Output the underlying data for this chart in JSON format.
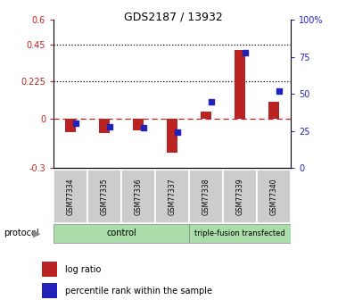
{
  "title": "GDS2187 / 13932",
  "samples": [
    "GSM77334",
    "GSM77335",
    "GSM77336",
    "GSM77337",
    "GSM77338",
    "GSM77339",
    "GSM77340"
  ],
  "log_ratio": [
    -0.08,
    -0.09,
    -0.07,
    -0.21,
    0.04,
    0.42,
    0.1
  ],
  "percentile_rank": [
    30,
    28,
    27,
    24,
    45,
    78,
    52
  ],
  "control_count": 4,
  "transfected_count": 3,
  "control_label": "control",
  "transfected_label": "triple-fusion transfected",
  "protocol_label": "protocol",
  "left_ylim": [
    -0.3,
    0.6
  ],
  "left_yticks": [
    -0.3,
    0.0,
    0.225,
    0.45,
    0.6
  ],
  "left_ytick_labels": [
    "-0.3",
    "0",
    "0.225",
    "0.45",
    "0.6"
  ],
  "right_ylim": [
    0,
    100
  ],
  "right_yticks": [
    0,
    25,
    50,
    75,
    100
  ],
  "right_ytick_labels": [
    "0",
    "25",
    "50",
    "75",
    "100%"
  ],
  "hline_dotted": [
    0.225,
    0.45
  ],
  "hline_zero": 0.0,
  "bar_width": 0.3,
  "log_ratio_color": "#bb2222",
  "percentile_color": "#2222bb",
  "green_bg": "#aaddaa",
  "sample_box_bg": "#cccccc",
  "legend_log_ratio": "log ratio",
  "legend_percentile": "percentile rank within the sample"
}
